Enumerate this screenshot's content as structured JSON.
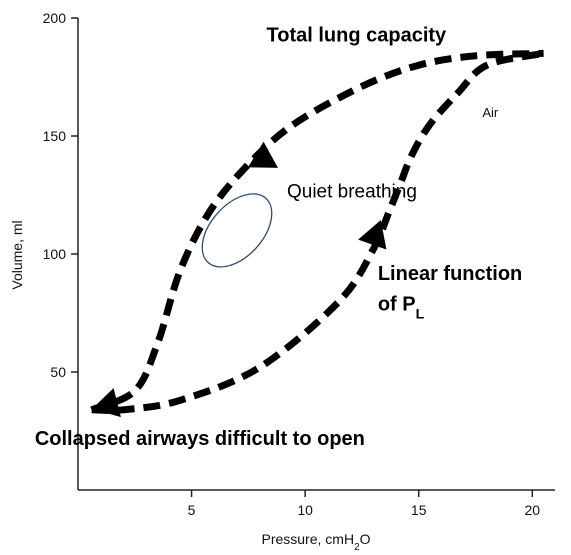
{
  "chart_data": {
    "type": "line",
    "xlabel": "Pressure, cmH₂O",
    "ylabel": "Volume, ml",
    "xlim": [
      0,
      21
    ],
    "ylim": [
      0,
      200
    ],
    "x_ticks": [
      5,
      10,
      15,
      20
    ],
    "y_ticks": [
      50,
      100,
      150,
      200
    ],
    "x_tick_labels": [
      "5",
      "10",
      "15",
      "20"
    ],
    "y_tick_labels": [
      "50",
      "100",
      "150",
      "200"
    ],
    "grid": false,
    "series": [
      {
        "name": "",
        "style": "dashed",
        "color": "#000000",
        "x": [
          0.6,
          2.0,
          4.5,
          8.0,
          11.5,
          13.0,
          13.7,
          14.2,
          14.7,
          15.5,
          16.7,
          18.0,
          20.5
        ],
        "y": [
          34,
          34,
          38,
          52,
          80,
          102,
          118,
          130,
          142,
          155,
          168,
          180,
          185
        ]
      },
      {
        "name": "",
        "style": "dashed",
        "color": "#000000",
        "x": [
          0.6,
          2.5,
          3.5,
          4.5,
          5.8,
          7.5,
          9.5,
          12.5,
          15.0,
          17.5,
          20.5
        ],
        "y": [
          34,
          42,
          62,
          93,
          118,
          138,
          155,
          171,
          180,
          184,
          185
        ]
      }
    ],
    "ellipse": {
      "cx": 7.0,
      "cy": 110,
      "rx": 2.0,
      "ry": 11,
      "color": "#2a4a6e"
    },
    "annotations": [
      {
        "text": "Total lung capacity",
        "x": 8.3,
        "y": 190,
        "style": "bold"
      },
      {
        "text": "Quiet breathing",
        "x": 9.2,
        "y": 124,
        "style": "plain"
      },
      {
        "text": "Air",
        "x": 17.8,
        "y": 158,
        "style": "small"
      },
      {
        "text": "Linear function",
        "x": 13.2,
        "y": 89,
        "style": "bold"
      },
      {
        "text": "of P",
        "sub": "L",
        "x": 13.2,
        "y": 76,
        "style": "bold"
      },
      {
        "text": "Collapsed airways difficult to open",
        "x": -1.9,
        "y": 19,
        "style": "bold"
      }
    ]
  }
}
